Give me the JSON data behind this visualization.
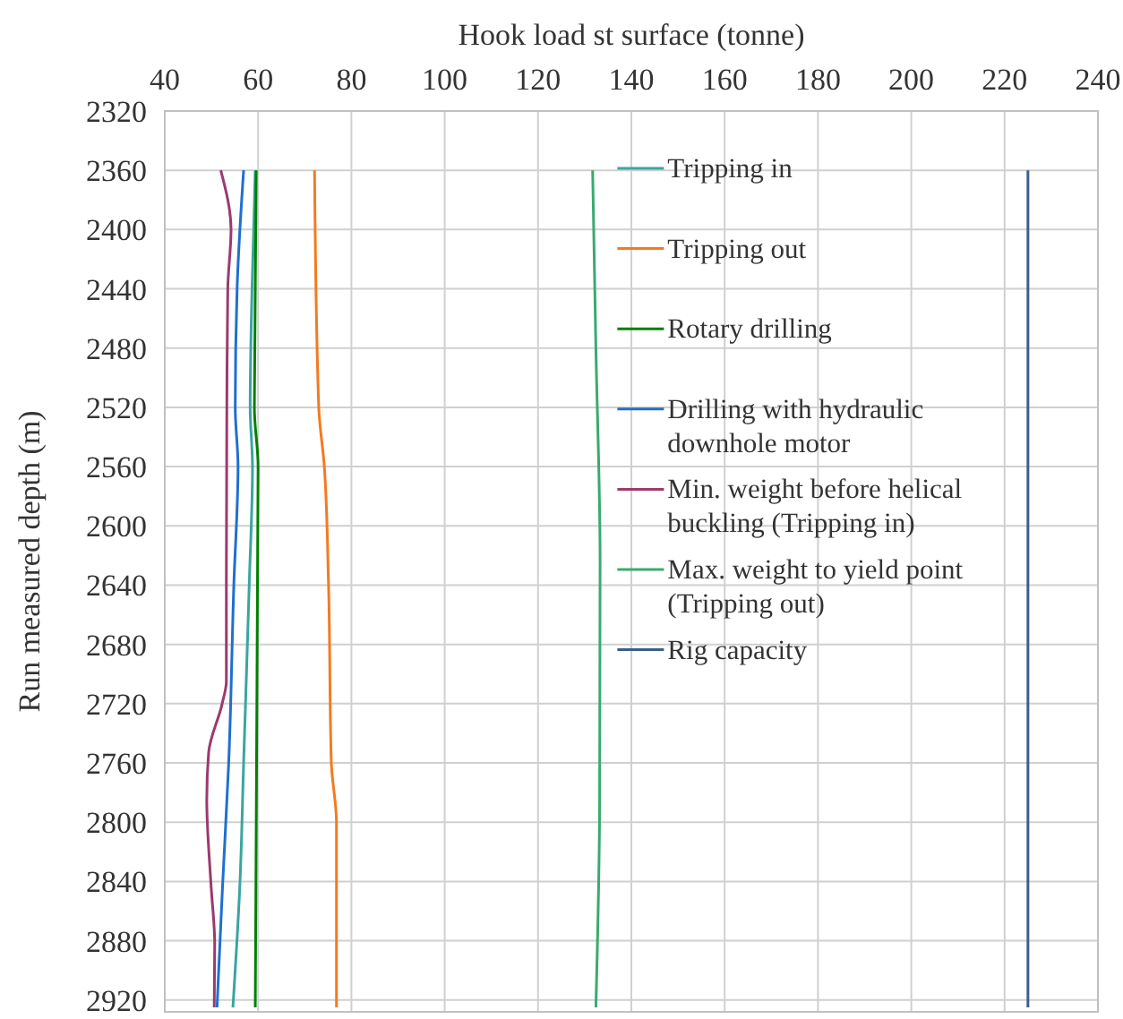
{
  "chart_data": {
    "type": "line",
    "xlabel": "Hook load st surface (tonne)",
    "ylabel": "Run measured depth (m)",
    "xlim": [
      40,
      240
    ],
    "xticks": [
      40,
      60,
      80,
      100,
      120,
      140,
      160,
      180,
      200,
      220,
      240
    ],
    "ylim": [
      2928,
      2320
    ],
    "yticks": [
      2320,
      2360,
      2400,
      2440,
      2480,
      2520,
      2560,
      2600,
      2640,
      2680,
      2720,
      2760,
      2800,
      2840,
      2880,
      2920
    ],
    "grid": true,
    "legend": "top",
    "line_style": "solid",
    "marker": "none",
    "series": [
      {
        "name": "Tripping in",
        "color": "#3aa5a0",
        "x": [
          59.4,
          58.7,
          58.3,
          58.8,
          58.1,
          56.9,
          56.1,
          54.6
        ],
        "values": [
          2360,
          2440,
          2520,
          2560,
          2640,
          2760,
          2842,
          2925
        ]
      },
      {
        "name": "Tripping out",
        "color": "#f47a20",
        "x": [
          72.1,
          73.0,
          74.2,
          75.1,
          75.7,
          76.8,
          76.8
        ],
        "values": [
          2360,
          2520,
          2560,
          2640,
          2760,
          2800,
          2925
        ]
      },
      {
        "name": "Rotary drilling",
        "color": "#008000",
        "x": [
          59.6,
          59.2,
          60.0,
          59.4
        ],
        "values": [
          2360,
          2520,
          2560,
          2925
        ]
      },
      {
        "name": "Drilling with hydraulic downhole motor",
        "color": "#1f6fd0",
        "x": [
          56.9,
          55.5,
          55.1,
          55.7,
          54.8,
          53.7,
          52.4,
          51.2
        ],
        "values": [
          2360,
          2440,
          2520,
          2560,
          2640,
          2760,
          2842,
          2925
        ]
      },
      {
        "name": "Min. weight before helical buckling (Tripping in)",
        "color": "#9b3a6e",
        "x": [
          52.0,
          54.2,
          53.5,
          53.3,
          53.2,
          53.2,
          52.3,
          49.4,
          49.0,
          49.9,
          50.7,
          50.6
        ],
        "values": [
          2360,
          2400,
          2440,
          2520,
          2640,
          2705,
          2720,
          2753,
          2785,
          2842,
          2882,
          2925
        ]
      },
      {
        "name": "Max. weight to yield point (Tripping out)",
        "color": "#3aaa6e",
        "x": [
          131.7,
          132.4,
          133.3,
          133.2,
          132.4
        ],
        "values": [
          2360,
          2480,
          2623,
          2788,
          2925
        ]
      },
      {
        "name": "Rig capacity",
        "color": "#3b5f8a",
        "x": [
          225,
          225
        ],
        "values": [
          2360,
          2925
        ]
      }
    ]
  }
}
